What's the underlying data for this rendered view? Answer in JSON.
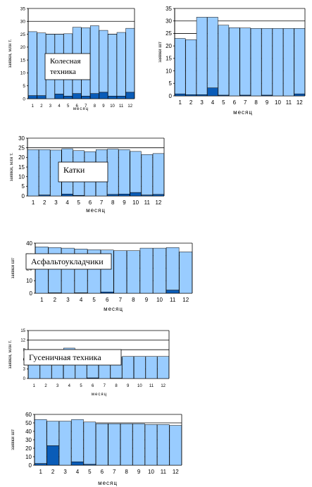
{
  "colors": {
    "light": "#99CCFF",
    "dark": "#0A5CB8",
    "stroke": "#000000"
  },
  "chart_data": [
    {
      "type": "bar",
      "stacked": true,
      "title": "Колесная техника",
      "xlabel": "месяц",
      "ylabel": "заявки, млн т.",
      "categories": [
        "1",
        "2",
        "3",
        "4",
        "5",
        "6",
        "7",
        "8",
        "9",
        "10",
        "11",
        "12"
      ],
      "ylim": [
        0,
        35
      ],
      "yticks": [
        0,
        5,
        10,
        15,
        20,
        25,
        30,
        35
      ],
      "grid": true,
      "series": [
        {
          "values": [
            1.2,
            1.2,
            0,
            1.8,
            1.0,
            2.0,
            1.0,
            2.0,
            2.5,
            1.0,
            1.0,
            2.5
          ]
        },
        {
          "values": [
            24.8,
            24.3,
            25.0,
            23.2,
            24.2,
            25.7,
            26.5,
            26.3,
            24.0,
            24.0,
            24.7,
            24.8
          ]
        }
      ]
    },
    {
      "type": "bar",
      "stacked": true,
      "title": "",
      "xlabel": "месяц",
      "ylabel": "заявки шт",
      "categories": [
        "1",
        "2",
        "3",
        "4",
        "5",
        "6",
        "7",
        "8",
        "9",
        "10",
        "11",
        "12"
      ],
      "ylim": [
        0,
        35
      ],
      "yticks": [
        0,
        5,
        10,
        15,
        20,
        25,
        30,
        35
      ],
      "grid": true,
      "series": [
        {
          "values": [
            0.8,
            0.5,
            0.5,
            3.2,
            0.3,
            0,
            0.3,
            0,
            0.3,
            0,
            0,
            0.8
          ]
        },
        {
          "values": [
            22.2,
            22.0,
            31.0,
            28.3,
            28.0,
            27.3,
            26.9,
            27.0,
            26.7,
            27.0,
            27.0,
            26.2
          ]
        }
      ]
    },
    {
      "type": "bar",
      "stacked": true,
      "title": "Катки",
      "xlabel": "месяц",
      "ylabel": "заявки, млн т.",
      "categories": [
        "1",
        "2",
        "3",
        "4",
        "5",
        "6",
        "7",
        "8",
        "9",
        "10",
        "11",
        "12"
      ],
      "ylim": [
        0,
        30
      ],
      "yticks": [
        0,
        5,
        10,
        15,
        20,
        25,
        30
      ],
      "grid": true,
      "series": [
        {
          "values": [
            0,
            0.5,
            0,
            1.0,
            0.3,
            0,
            0,
            0.8,
            1.0,
            1.8,
            0.5,
            0.8
          ]
        },
        {
          "values": [
            24.0,
            23.5,
            23.8,
            23.5,
            23.2,
            23.0,
            24.0,
            23.5,
            23.0,
            21.3,
            21.0,
            21.2
          ]
        }
      ]
    },
    {
      "type": "bar",
      "stacked": true,
      "title": "Асфальтоукладчики",
      "xlabel": "месяц",
      "ylabel": "заявки шт",
      "categories": [
        "1",
        "2",
        "3",
        "4",
        "5",
        "6",
        "7",
        "8",
        "9",
        "10",
        "11",
        "12"
      ],
      "ylim": [
        0,
        40
      ],
      "yticks": [
        0,
        10,
        20,
        30,
        40
      ],
      "grid": true,
      "series": [
        {
          "values": [
            0,
            0.3,
            0,
            0.3,
            0,
            1.0,
            0,
            0,
            0,
            0,
            2.5,
            0
          ]
        },
        {
          "values": [
            37.0,
            36.2,
            36.0,
            35.0,
            34.7,
            33.5,
            34.0,
            34.0,
            36.0,
            36.0,
            34.0,
            33.0
          ]
        }
      ]
    },
    {
      "type": "bar",
      "stacked": true,
      "title": "Гусеничная техника",
      "xlabel": "месяц",
      "ylabel": "заявки, млн т.",
      "categories": [
        "1",
        "2",
        "3",
        "4",
        "5",
        "6",
        "7",
        "8",
        "9",
        "10",
        "11",
        "12"
      ],
      "ylim": [
        0,
        15
      ],
      "yticks": [
        0,
        3,
        6,
        9,
        12,
        15
      ],
      "grid": true,
      "series": [
        {
          "values": [
            0,
            0,
            0,
            0,
            0,
            0.2,
            0,
            0.1,
            0,
            0,
            0,
            0
          ]
        },
        {
          "values": [
            9.0,
            9.0,
            9.0,
            9.5,
            9.0,
            6.8,
            6.5,
            6.6,
            6.9,
            6.9,
            6.9,
            6.9
          ]
        }
      ]
    },
    {
      "type": "bar",
      "stacked": true,
      "title": "",
      "xlabel": "месяц",
      "ylabel": "заявки шт",
      "categories": [
        "1",
        "2",
        "3",
        "4",
        "5",
        "6",
        "7",
        "8",
        "9",
        "10",
        "11",
        "12"
      ],
      "ylim": [
        0,
        60
      ],
      "yticks": [
        0,
        10,
        20,
        30,
        40,
        50,
        60
      ],
      "grid": true,
      "series": [
        {
          "values": [
            2,
            23,
            0,
            4,
            1,
            0,
            0,
            0,
            0,
            0,
            0,
            0
          ]
        },
        {
          "values": [
            52,
            29,
            52,
            50,
            50,
            49,
            49,
            49,
            49,
            48,
            48,
            47
          ]
        }
      ]
    }
  ]
}
